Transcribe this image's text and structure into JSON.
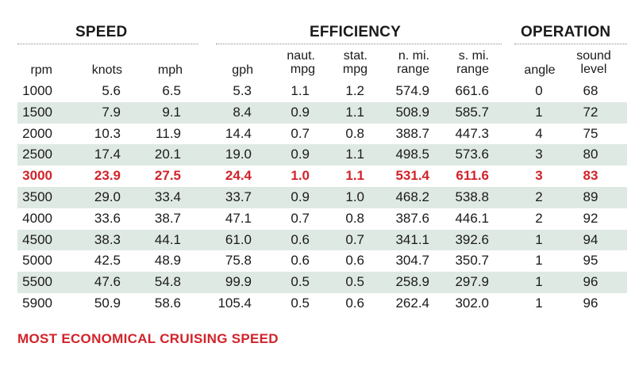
{
  "groups": {
    "speed": "SPEED",
    "efficiency": "EFFICIENCY",
    "operation": "OPERATION"
  },
  "headers": {
    "rpm": "rpm",
    "knots": "knots",
    "mph": "mph",
    "gph": "gph",
    "naut_mpg": [
      "naut.",
      "mpg"
    ],
    "stat_mpg": [
      "stat.",
      "mpg"
    ],
    "n_mi_range": [
      "n. mi.",
      "range"
    ],
    "s_mi_range": [
      "s. mi.",
      "range"
    ],
    "angle": "angle",
    "sound_level": [
      "sound",
      "level"
    ]
  },
  "rows": [
    {
      "rpm": "1000",
      "knots": "5.6",
      "mph": "6.5",
      "gph": "5.3",
      "naut_mpg": "1.1",
      "stat_mpg": "1.2",
      "n_mi_range": "574.9",
      "s_mi_range": "661.6",
      "angle": "0",
      "sound_level": "68",
      "shaded": false,
      "highlight": false
    },
    {
      "rpm": "1500",
      "knots": "7.9",
      "mph": "9.1",
      "gph": "8.4",
      "naut_mpg": "0.9",
      "stat_mpg": "1.1",
      "n_mi_range": "508.9",
      "s_mi_range": "585.7",
      "angle": "1",
      "sound_level": "72",
      "shaded": true,
      "highlight": false
    },
    {
      "rpm": "2000",
      "knots": "10.3",
      "mph": "11.9",
      "gph": "14.4",
      "naut_mpg": "0.7",
      "stat_mpg": "0.8",
      "n_mi_range": "388.7",
      "s_mi_range": "447.3",
      "angle": "4",
      "sound_level": "75",
      "shaded": false,
      "highlight": false
    },
    {
      "rpm": "2500",
      "knots": "17.4",
      "mph": "20.1",
      "gph": "19.0",
      "naut_mpg": "0.9",
      "stat_mpg": "1.1",
      "n_mi_range": "498.5",
      "s_mi_range": "573.6",
      "angle": "3",
      "sound_level": "80",
      "shaded": true,
      "highlight": false
    },
    {
      "rpm": "3000",
      "knots": "23.9",
      "mph": "27.5",
      "gph": "24.4",
      "naut_mpg": "1.0",
      "stat_mpg": "1.1",
      "n_mi_range": "531.4",
      "s_mi_range": "611.6",
      "angle": "3",
      "sound_level": "83",
      "shaded": false,
      "highlight": true
    },
    {
      "rpm": "3500",
      "knots": "29.0",
      "mph": "33.4",
      "gph": "33.7",
      "naut_mpg": "0.9",
      "stat_mpg": "1.0",
      "n_mi_range": "468.2",
      "s_mi_range": "538.8",
      "angle": "2",
      "sound_level": "89",
      "shaded": true,
      "highlight": false
    },
    {
      "rpm": "4000",
      "knots": "33.6",
      "mph": "38.7",
      "gph": "47.1",
      "naut_mpg": "0.7",
      "stat_mpg": "0.8",
      "n_mi_range": "387.6",
      "s_mi_range": "446.1",
      "angle": "2",
      "sound_level": "92",
      "shaded": false,
      "highlight": false
    },
    {
      "rpm": "4500",
      "knots": "38.3",
      "mph": "44.1",
      "gph": "61.0",
      "naut_mpg": "0.6",
      "stat_mpg": "0.7",
      "n_mi_range": "341.1",
      "s_mi_range": "392.6",
      "angle": "1",
      "sound_level": "94",
      "shaded": true,
      "highlight": false
    },
    {
      "rpm": "5000",
      "knots": "42.5",
      "mph": "48.9",
      "gph": "75.8",
      "naut_mpg": "0.6",
      "stat_mpg": "0.6",
      "n_mi_range": "304.7",
      "s_mi_range": "350.7",
      "angle": "1",
      "sound_level": "95",
      "shaded": false,
      "highlight": false
    },
    {
      "rpm": "5500",
      "knots": "47.6",
      "mph": "54.8",
      "gph": "99.9",
      "naut_mpg": "0.5",
      "stat_mpg": "0.5",
      "n_mi_range": "258.9",
      "s_mi_range": "297.9",
      "angle": "1",
      "sound_level": "96",
      "shaded": true,
      "highlight": false
    },
    {
      "rpm": "5900",
      "knots": "50.9",
      "mph": "58.6",
      "gph": "105.4",
      "naut_mpg": "0.5",
      "stat_mpg": "0.6",
      "n_mi_range": "262.4",
      "s_mi_range": "302.0",
      "angle": "1",
      "sound_level": "96",
      "shaded": false,
      "highlight": false
    }
  ],
  "footnote": "MOST ECONOMICAL CRUISING SPEED",
  "colors": {
    "row_shade": "#dfe9e3",
    "highlight": "#d2232a",
    "text": "#1a1a1a"
  }
}
